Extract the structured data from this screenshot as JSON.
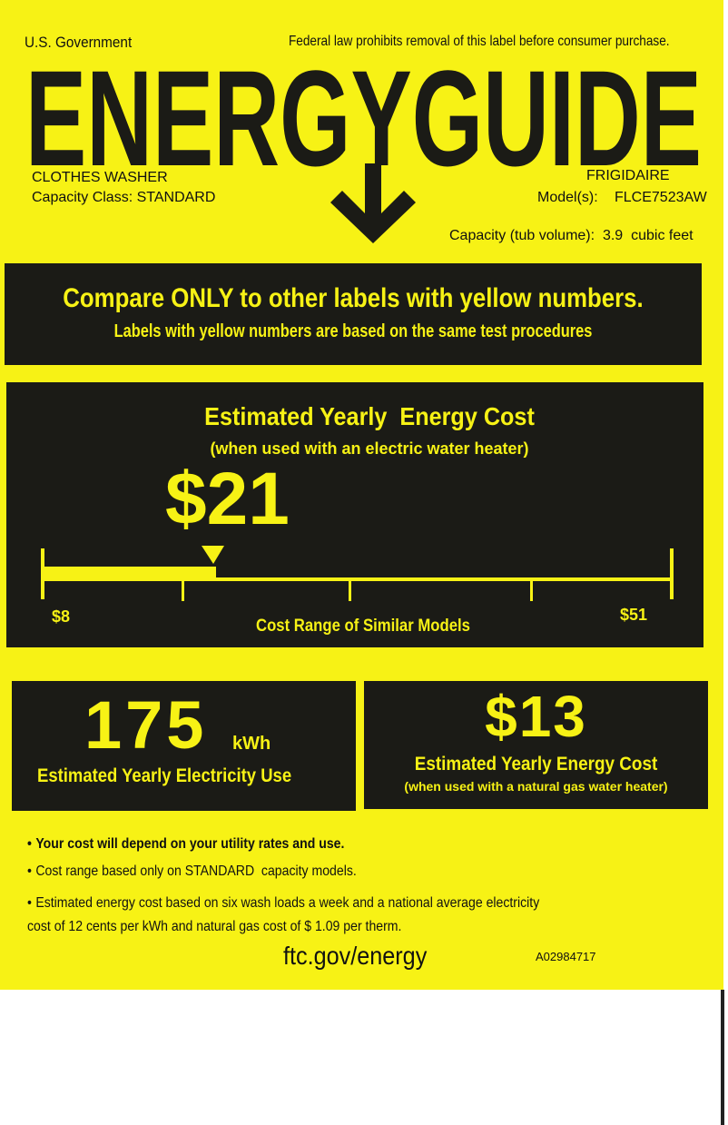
{
  "header": {
    "left": "U.S. Government",
    "right": "Federal law prohibits removal of this label before consumer purchase.",
    "title": "ENERGYGUIDE"
  },
  "product": {
    "type": "CLOTHES WASHER",
    "capacity_class": "Capacity Class: STANDARD",
    "brand": "FRIGIDAIRE",
    "model_label": "Model(s):",
    "model": "FLCE7523AW",
    "capacity": "Capacity (tub volume):  3.9  cubic feet"
  },
  "compare": {
    "heading": "Compare ONLY to other labels with yellow numbers.",
    "sub": "Labels with yellow numbers are based on the same test procedures"
  },
  "cost": {
    "heading": "Estimated Yearly  Energy Cost",
    "sub": "(when used with an electric water heater)",
    "value": "$21",
    "range_min": "$8",
    "range_max": "$51",
    "range_label": "Cost Range of Similar Models"
  },
  "electricity": {
    "value": "175",
    "unit": "kWh",
    "label": "Estimated Yearly Electricity Use"
  },
  "gas": {
    "value": "$13",
    "label": "Estimated Yearly Energy Cost",
    "sub": "(when used with a natural gas water heater)"
  },
  "notes": [
    "Your cost will depend on your utility rates and use.",
    "Cost range based only on STANDARD  capacity models.",
    "Estimated energy cost based on six wash loads a week and a national average electricity cost of 12 cents per kWh and natural gas cost of $ 1.09 per therm."
  ],
  "footer": {
    "url": "ftc.gov/energy",
    "code": "A02984717"
  }
}
